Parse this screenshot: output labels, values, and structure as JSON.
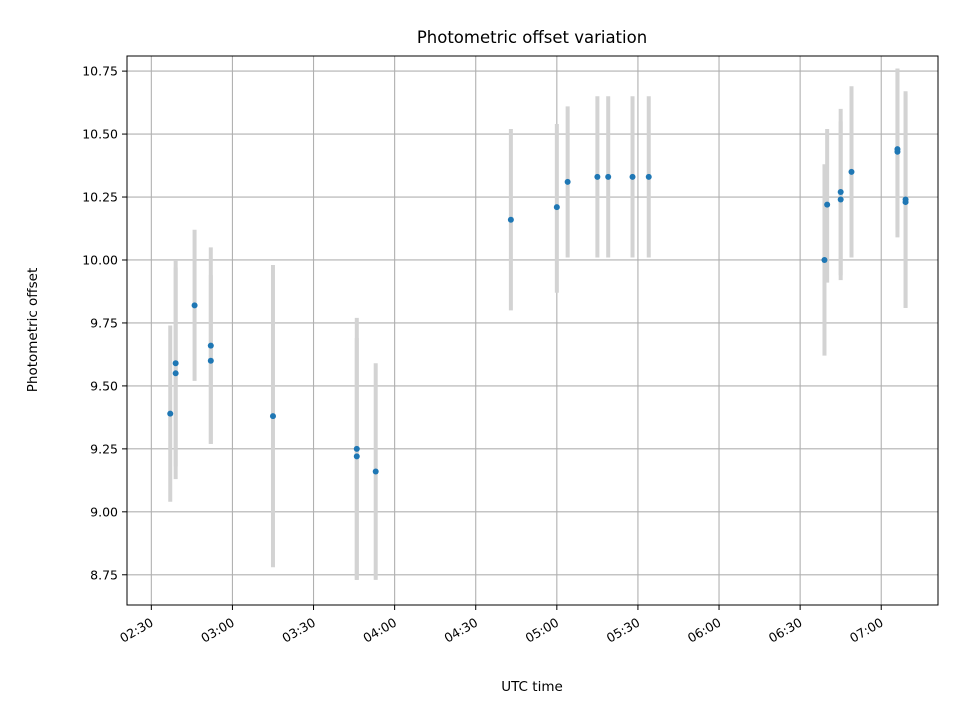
{
  "chart_data": {
    "type": "scatter",
    "title": "Photometric offset variation",
    "xlabel": "UTC time",
    "ylabel": "Photometric offset",
    "grid": true,
    "xlim_minutes": [
      141,
      441
    ],
    "ylim": [
      8.63,
      10.81
    ],
    "x_ticks": [
      "02:30",
      "03:00",
      "03:30",
      "04:00",
      "04:30",
      "05:00",
      "05:30",
      "06:00",
      "06:30",
      "07:00"
    ],
    "y_ticks": [
      "8.75",
      "9.00",
      "9.25",
      "9.50",
      "9.75",
      "10.00",
      "10.25",
      "10.50",
      "10.75"
    ],
    "colors": {
      "point": "#1f77b4",
      "errorbar": "#d3d3d3",
      "grid": "#b0b0b0"
    },
    "series": [
      {
        "points": [
          {
            "t": "02:37",
            "y": 9.39,
            "low": 9.04,
            "high": 9.74
          },
          {
            "t": "02:39",
            "y": 9.59,
            "low": 9.18,
            "high": 10.0
          },
          {
            "t": "02:39",
            "y": 9.55,
            "low": 9.13,
            "high": 9.97
          },
          {
            "t": "02:46",
            "y": 9.82,
            "low": 9.52,
            "high": 10.12
          },
          {
            "t": "02:52",
            "y": 9.6,
            "low": 9.27,
            "high": 9.94
          },
          {
            "t": "02:52",
            "y": 9.66,
            "low": 9.27,
            "high": 10.05
          },
          {
            "t": "03:15",
            "y": 9.38,
            "low": 8.78,
            "high": 9.98
          },
          {
            "t": "03:46",
            "y": 9.25,
            "low": 8.73,
            "high": 9.77
          },
          {
            "t": "03:46",
            "y": 9.22,
            "low": 8.73,
            "high": 9.69
          },
          {
            "t": "03:53",
            "y": 9.16,
            "low": 8.73,
            "high": 9.59
          },
          {
            "t": "04:43",
            "y": 10.16,
            "low": 9.8,
            "high": 10.52
          },
          {
            "t": "05:00",
            "y": 10.21,
            "low": 9.87,
            "high": 10.54
          },
          {
            "t": "05:04",
            "y": 10.31,
            "low": 10.01,
            "high": 10.61
          },
          {
            "t": "05:15",
            "y": 10.33,
            "low": 10.01,
            "high": 10.65
          },
          {
            "t": "05:19",
            "y": 10.33,
            "low": 10.01,
            "high": 10.65
          },
          {
            "t": "05:28",
            "y": 10.33,
            "low": 10.01,
            "high": 10.65
          },
          {
            "t": "05:34",
            "y": 10.33,
            "low": 10.01,
            "high": 10.65
          },
          {
            "t": "06:39",
            "y": 10.0,
            "low": 9.62,
            "high": 10.38
          },
          {
            "t": "06:40",
            "y": 10.22,
            "low": 9.91,
            "high": 10.52
          },
          {
            "t": "06:45",
            "y": 10.24,
            "low": 9.92,
            "high": 10.55
          },
          {
            "t": "06:45",
            "y": 10.27,
            "low": 9.94,
            "high": 10.6
          },
          {
            "t": "06:49",
            "y": 10.35,
            "low": 10.01,
            "high": 10.69
          },
          {
            "t": "07:06",
            "y": 10.43,
            "low": 10.09,
            "high": 10.76
          },
          {
            "t": "07:06",
            "y": 10.44,
            "low": 10.12,
            "high": 10.76
          },
          {
            "t": "07:09",
            "y": 10.23,
            "low": 9.81,
            "high": 10.67
          },
          {
            "t": "07:09",
            "y": 10.24,
            "low": 9.81,
            "high": 10.66
          }
        ]
      }
    ]
  }
}
